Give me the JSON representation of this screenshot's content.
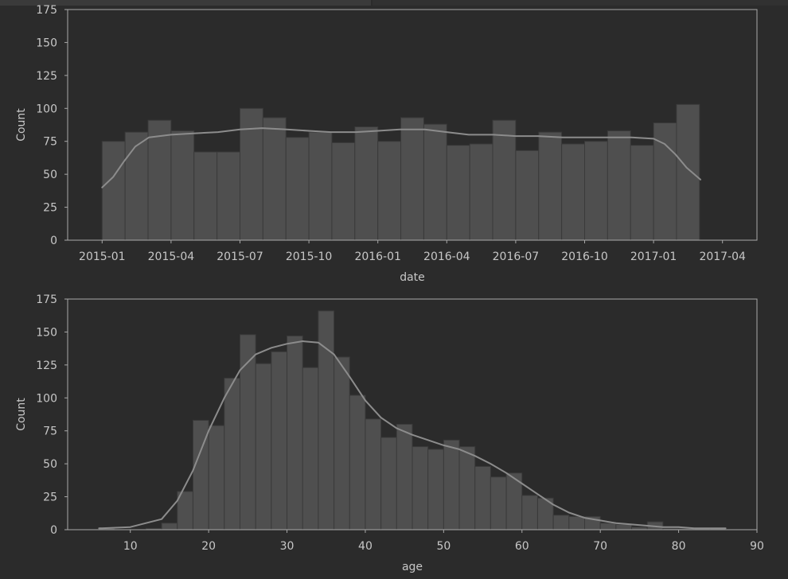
{
  "colors": {
    "background": "#2b2b2b",
    "bar_fill": "#4f4f4f",
    "bar_edge": "#3a3a3a",
    "kde_line": "#8c8c8c",
    "frame": "#a8a8a8",
    "text": "#c7c7c7"
  },
  "chart_data": [
    {
      "type": "bar",
      "subtype": "histogram with kde",
      "xlabel": "date",
      "ylabel": "Count",
      "ylim": [
        0,
        175
      ],
      "grid": false,
      "y_ticks": [
        "0",
        "25",
        "50",
        "75",
        "100",
        "125",
        "150",
        "175"
      ],
      "x_ticks": [
        "2015-01",
        "2015-04",
        "2015-07",
        "2015-10",
        "2016-01",
        "2016-04",
        "2016-07",
        "2016-10",
        "2017-01",
        "2017-04"
      ],
      "xlim": [
        2014.875,
        2017.375
      ],
      "bins": [
        {
          "start": 2015.0,
          "end": 2015.0833,
          "count": 75
        },
        {
          "start": 2015.0833,
          "end": 2015.1667,
          "count": 82
        },
        {
          "start": 2015.1667,
          "end": 2015.25,
          "count": 91
        },
        {
          "start": 2015.25,
          "end": 2015.3333,
          "count": 83
        },
        {
          "start": 2015.3333,
          "end": 2015.4167,
          "count": 67
        },
        {
          "start": 2015.4167,
          "end": 2015.5,
          "count": 67
        },
        {
          "start": 2015.5,
          "end": 2015.5833,
          "count": 100
        },
        {
          "start": 2015.5833,
          "end": 2015.6667,
          "count": 93
        },
        {
          "start": 2015.6667,
          "end": 2015.75,
          "count": 78
        },
        {
          "start": 2015.75,
          "end": 2015.8333,
          "count": 82
        },
        {
          "start": 2015.8333,
          "end": 2015.9167,
          "count": 74
        },
        {
          "start": 2015.9167,
          "end": 2016.0,
          "count": 86
        },
        {
          "start": 2016.0,
          "end": 2016.0833,
          "count": 75
        },
        {
          "start": 2016.0833,
          "end": 2016.1667,
          "count": 93
        },
        {
          "start": 2016.1667,
          "end": 2016.25,
          "count": 88
        },
        {
          "start": 2016.25,
          "end": 2016.3333,
          "count": 72
        },
        {
          "start": 2016.3333,
          "end": 2016.4167,
          "count": 73
        },
        {
          "start": 2016.4167,
          "end": 2016.5,
          "count": 91
        },
        {
          "start": 2016.5,
          "end": 2016.5833,
          "count": 68
        },
        {
          "start": 2016.5833,
          "end": 2016.6667,
          "count": 82
        },
        {
          "start": 2016.6667,
          "end": 2016.75,
          "count": 73
        },
        {
          "start": 2016.75,
          "end": 2016.8333,
          "count": 75
        },
        {
          "start": 2016.8333,
          "end": 2016.9167,
          "count": 83
        },
        {
          "start": 2016.9167,
          "end": 2017.0,
          "count": 72
        },
        {
          "start": 2017.0,
          "end": 2017.0833,
          "count": 89
        },
        {
          "start": 2017.0833,
          "end": 2017.1667,
          "count": 103
        }
      ],
      "kde": {
        "x": [
          2015.0,
          2015.04,
          2015.08,
          2015.12,
          2015.17,
          2015.25,
          2015.33,
          2015.42,
          2015.5,
          2015.58,
          2015.67,
          2015.75,
          2015.83,
          2015.92,
          2016.0,
          2016.08,
          2016.17,
          2016.25,
          2016.33,
          2016.42,
          2016.5,
          2016.58,
          2016.67,
          2016.75,
          2016.83,
          2016.92,
          2017.0,
          2017.04,
          2017.08,
          2017.12,
          2017.17
        ],
        "y": [
          40,
          48,
          60,
          71,
          78,
          80,
          81,
          82,
          84,
          85,
          84,
          83,
          82,
          82,
          83,
          84,
          84,
          82,
          80,
          80,
          79,
          79,
          78,
          78,
          78,
          78,
          77,
          73,
          65,
          55,
          46
        ]
      }
    },
    {
      "type": "bar",
      "subtype": "histogram with kde",
      "xlabel": "age",
      "ylabel": "Count",
      "ylim": [
        0,
        175
      ],
      "xlim": [
        2,
        90
      ],
      "grid": false,
      "y_ticks": [
        "0",
        "25",
        "50",
        "75",
        "100",
        "125",
        "150",
        "175"
      ],
      "x_ticks": [
        "10",
        "20",
        "30",
        "40",
        "50",
        "60",
        "70",
        "80",
        "90"
      ],
      "bins": [
        {
          "start": 6,
          "end": 8,
          "count": 1
        },
        {
          "start": 8,
          "end": 10,
          "count": 0
        },
        {
          "start": 10,
          "end": 12,
          "count": 0
        },
        {
          "start": 12,
          "end": 14,
          "count": 1
        },
        {
          "start": 14,
          "end": 16,
          "count": 5
        },
        {
          "start": 16,
          "end": 18,
          "count": 29
        },
        {
          "start": 18,
          "end": 20,
          "count": 83
        },
        {
          "start": 20,
          "end": 22,
          "count": 79
        },
        {
          "start": 22,
          "end": 24,
          "count": 115
        },
        {
          "start": 24,
          "end": 26,
          "count": 148
        },
        {
          "start": 26,
          "end": 28,
          "count": 126
        },
        {
          "start": 28,
          "end": 30,
          "count": 135
        },
        {
          "start": 30,
          "end": 32,
          "count": 147
        },
        {
          "start": 32,
          "end": 34,
          "count": 123
        },
        {
          "start": 34,
          "end": 36,
          "count": 166
        },
        {
          "start": 36,
          "end": 38,
          "count": 131
        },
        {
          "start": 38,
          "end": 40,
          "count": 102
        },
        {
          "start": 40,
          "end": 42,
          "count": 84
        },
        {
          "start": 42,
          "end": 44,
          "count": 70
        },
        {
          "start": 44,
          "end": 46,
          "count": 80
        },
        {
          "start": 46,
          "end": 48,
          "count": 63
        },
        {
          "start": 48,
          "end": 50,
          "count": 61
        },
        {
          "start": 50,
          "end": 52,
          "count": 68
        },
        {
          "start": 52,
          "end": 54,
          "count": 63
        },
        {
          "start": 54,
          "end": 56,
          "count": 48
        },
        {
          "start": 56,
          "end": 58,
          "count": 40
        },
        {
          "start": 58,
          "end": 60,
          "count": 43
        },
        {
          "start": 60,
          "end": 62,
          "count": 26
        },
        {
          "start": 62,
          "end": 64,
          "count": 24
        },
        {
          "start": 64,
          "end": 66,
          "count": 11
        },
        {
          "start": 66,
          "end": 68,
          "count": 10
        },
        {
          "start": 68,
          "end": 70,
          "count": 10
        },
        {
          "start": 70,
          "end": 72,
          "count": 5
        },
        {
          "start": 72,
          "end": 74,
          "count": 4
        },
        {
          "start": 74,
          "end": 76,
          "count": 2
        },
        {
          "start": 76,
          "end": 78,
          "count": 6
        },
        {
          "start": 78,
          "end": 80,
          "count": 1
        },
        {
          "start": 80,
          "end": 82,
          "count": 1
        },
        {
          "start": 82,
          "end": 84,
          "count": 1
        },
        {
          "start": 84,
          "end": 86,
          "count": 1
        }
      ],
      "kde": {
        "x": [
          6,
          10,
          14,
          16,
          18,
          20,
          22,
          24,
          26,
          28,
          30,
          32,
          34,
          36,
          38,
          40,
          42,
          44,
          46,
          48,
          50,
          52,
          54,
          56,
          58,
          60,
          62,
          64,
          66,
          68,
          70,
          72,
          74,
          76,
          78,
          80,
          82,
          84,
          86
        ],
        "y": [
          1,
          2,
          8,
          22,
          45,
          75,
          100,
          121,
          133,
          138,
          141,
          143,
          142,
          133,
          116,
          98,
          85,
          77,
          72,
          68,
          64,
          61,
          56,
          50,
          43,
          35,
          27,
          19,
          13,
          9,
          7,
          5,
          4,
          3,
          2,
          2,
          1,
          1,
          1
        ]
      }
    }
  ]
}
